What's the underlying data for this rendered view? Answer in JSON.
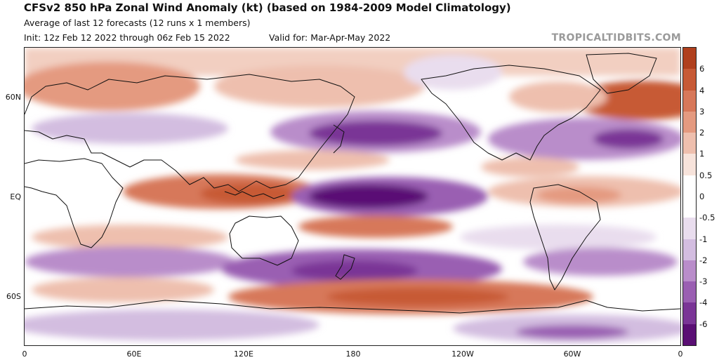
{
  "header": {
    "title": "CFSv2 850 hPa Zonal Wind Anomaly (kt) (based on 1984-2009 Model Climatology)",
    "subtitle": "Average of last 12 forecasts (12 runs x 1 members)",
    "init": "Init: 12z Feb 12 2022 through 06z Feb 15 2022",
    "valid": "Valid for: Mar-Apr-May 2022",
    "brand": "TROPICALTIDBITS.COM"
  },
  "map": {
    "lat_labels": [
      "60N",
      "EQ",
      "60S"
    ],
    "lon_labels": [
      "0",
      "60E",
      "120E",
      "180",
      "120W",
      "60W",
      "0"
    ]
  },
  "colorbar": {
    "labels": [
      "6",
      "4",
      "3",
      "2",
      "1",
      "0.5",
      "0",
      "-0.5",
      "-1",
      "-2",
      "-3",
      "-4",
      "-6"
    ],
    "colors": [
      "#b0401e",
      "#c75a36",
      "#d7785a",
      "#e49a80",
      "#eebfae",
      "#f7e3db",
      "#ffffff",
      "#ffffff",
      "#e9ddee",
      "#d3bde0",
      "#b98dca",
      "#9a5fb2",
      "#7a3596",
      "#5a0f74"
    ]
  },
  "palette": {
    "land_line": "#111111",
    "warm_strong": "#b0401e",
    "warm_medium": "#d7785a",
    "warm_light": "#eebfae",
    "cool_light": "#e9ddee",
    "cool_medium": "#b98dca",
    "cool_strong": "#7a3596"
  }
}
